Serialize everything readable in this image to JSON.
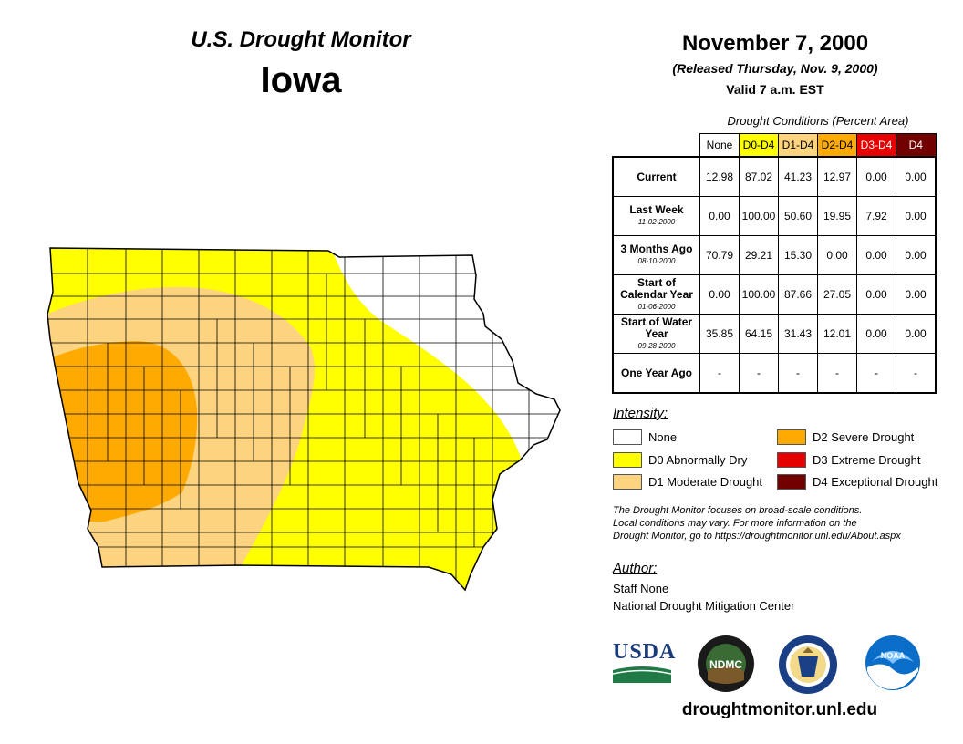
{
  "header": {
    "title": "U.S. Drought Monitor",
    "state": "Iowa",
    "date": "November 7, 2000",
    "released": "(Released Thursday, Nov. 9, 2000)",
    "valid": "Valid 7 a.m. EST"
  },
  "table": {
    "caption": "Drought Conditions (Percent Area)",
    "columns": [
      {
        "label": "None",
        "color": "#ffffff",
        "text_color": "#000000"
      },
      {
        "label": "D0-D4",
        "color": "#ffff00",
        "text_color": "#000000"
      },
      {
        "label": "D1-D4",
        "color": "#fcd37f",
        "text_color": "#000000"
      },
      {
        "label": "D2-D4",
        "color": "#ffaa00",
        "text_color": "#000000"
      },
      {
        "label": "D3-D4",
        "color": "#e60000",
        "text_color": "#ffffff"
      },
      {
        "label": "D4",
        "color": "#730000",
        "text_color": "#ffffff"
      }
    ],
    "rows": [
      {
        "label": "Current",
        "date": "",
        "values": [
          "12.98",
          "87.02",
          "41.23",
          "12.97",
          "0.00",
          "0.00"
        ]
      },
      {
        "label": "Last Week",
        "date": "11-02-2000",
        "values": [
          "0.00",
          "100.00",
          "50.60",
          "19.95",
          "7.92",
          "0.00"
        ]
      },
      {
        "label": "3 Months Ago",
        "date": "08-10-2000",
        "values": [
          "70.79",
          "29.21",
          "15.30",
          "0.00",
          "0.00",
          "0.00"
        ]
      },
      {
        "label": "Start of Calendar Year",
        "date": "01-06-2000",
        "values": [
          "0.00",
          "100.00",
          "87.66",
          "27.05",
          "0.00",
          "0.00"
        ]
      },
      {
        "label": "Start of Water Year",
        "date": "09-28-2000",
        "values": [
          "35.85",
          "64.15",
          "31.43",
          "12.01",
          "0.00",
          "0.00"
        ]
      },
      {
        "label": "One Year Ago",
        "date": "",
        "values": [
          "-",
          "-",
          "-",
          "-",
          "-",
          "-"
        ]
      }
    ]
  },
  "legend": {
    "title": "Intensity:",
    "items": [
      {
        "label": "None",
        "color": "#ffffff"
      },
      {
        "label": "D0 Abnormally Dry",
        "color": "#ffff00"
      },
      {
        "label": "D1 Moderate Drought",
        "color": "#fcd37f"
      },
      {
        "label": "D2 Severe Drought",
        "color": "#ffaa00"
      },
      {
        "label": "D3 Extreme Drought",
        "color": "#e60000"
      },
      {
        "label": "D4 Exceptional Drought",
        "color": "#730000"
      }
    ]
  },
  "note": {
    "line1": "The Drought Monitor focuses on broad-scale conditions.",
    "line2": "Local conditions may vary. For more information on the",
    "line3": "Drought Monitor, go to https://droughtmonitor.unl.edu/About.aspx"
  },
  "author": {
    "title": "Author:",
    "name": "Staff None",
    "org": "National Drought Mitigation Center"
  },
  "logos": {
    "usda": "USDA",
    "ndmc": "NDMC",
    "noaa": "NOAA"
  },
  "url": "droughtmonitor.unl.edu",
  "map_colors": {
    "none": "#ffffff",
    "d0": "#ffff00",
    "d1": "#fcd37f",
    "d2": "#ffaa00",
    "county_lines": "#000000"
  }
}
